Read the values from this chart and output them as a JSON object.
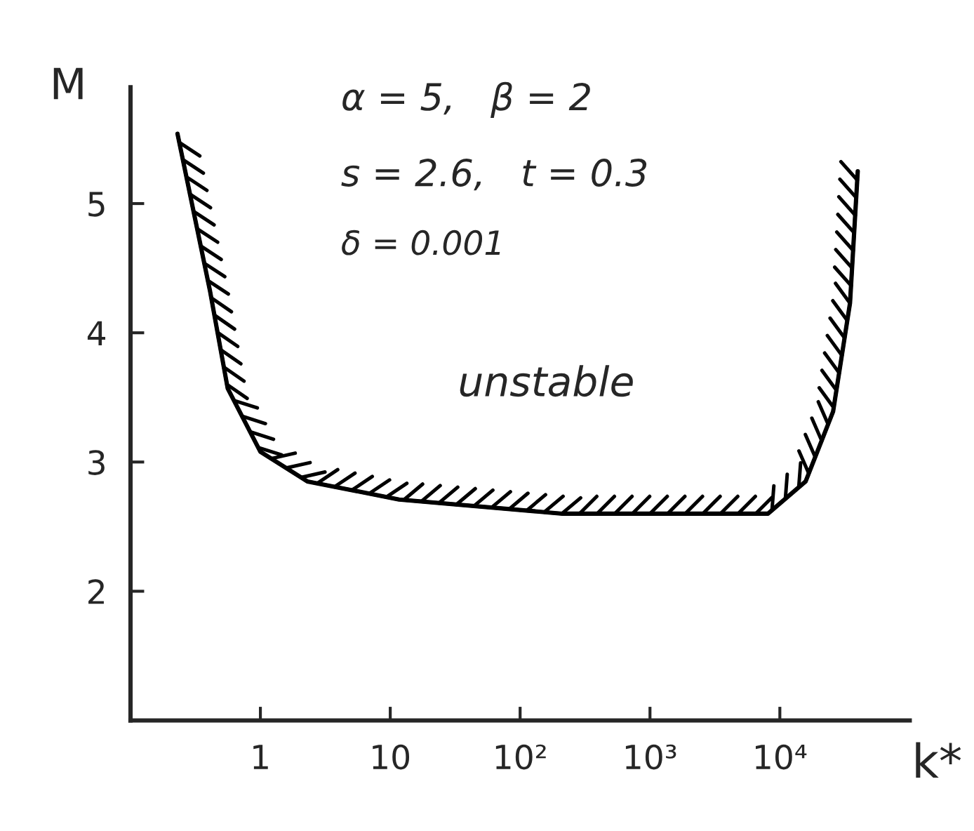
{
  "chart_data": {
    "type": "line",
    "xlabel": "k*",
    "ylabel": "M",
    "log": "x",
    "x": [
      0.23,
      0.41,
      0.56,
      1,
      2.3,
      11.7,
      213,
      8100,
      15800,
      25700,
      34700,
      39800
    ],
    "series": [
      {
        "color": "#000000",
        "values": [
          5.54,
          4.32,
          3.57,
          3.08,
          2.85,
          2.71,
          2.6,
          2.6,
          2.85,
          3.39,
          4.23,
          5.25
        ]
      }
    ],
    "xlim": [
      0.1,
      100000
    ],
    "ylim": [
      1,
      5.9
    ],
    "xticks": [
      1,
      10,
      {
        "value": 100,
        "label": "10²"
      },
      {
        "value": 1000,
        "label": "10³"
      },
      {
        "value": 10000,
        "label": "10⁴"
      }
    ],
    "yticks": [
      2,
      3,
      4,
      5
    ],
    "annotations": [
      "α = 5,   β = 2",
      "s = 2.6,   t = 0.3",
      "δ = 0.001",
      "unstable"
    ],
    "grid": false,
    "legend": false,
    "marker": "none",
    "line_style": "solid"
  }
}
